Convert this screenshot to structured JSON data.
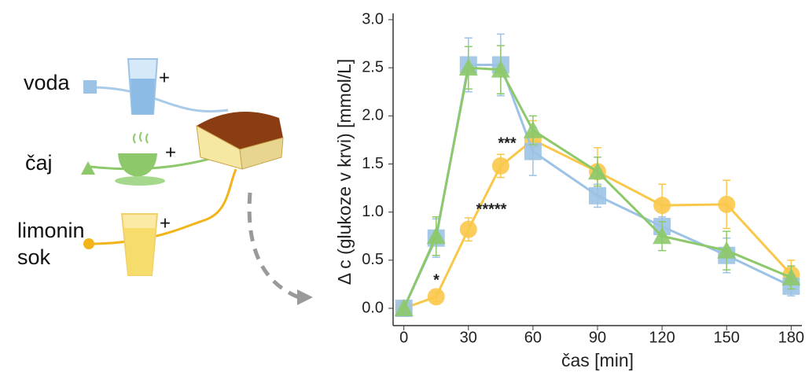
{
  "chart_data": {
    "type": "line",
    "y_label": "Δ c (glukoze v krvi) [mmol/L]",
    "x_label": "čas [min]",
    "x": [
      0,
      15,
      30,
      45,
      60,
      90,
      120,
      150,
      180
    ],
    "xlim": [
      -5,
      185
    ],
    "xticks": [
      0,
      30,
      60,
      90,
      120,
      150,
      180
    ],
    "ylim": [
      0,
      3
    ],
    "yticks": [
      {
        "value": 0,
        "label": "0.0"
      },
      0.5,
      {
        "value": 1,
        "label": "1.0"
      },
      1.5,
      {
        "value": 2,
        "label": "2.0"
      },
      2.5,
      {
        "value": 3,
        "label": "3.0"
      }
    ],
    "series": [
      {
        "name": "voda",
        "color": "#9cc3e6",
        "marker": "square",
        "values": [
          0,
          0.73,
          2.53,
          2.53,
          1.63,
          1.17,
          0.85,
          0.55,
          0.23
        ],
        "errors": [
          0,
          0.2,
          0.28,
          0.32,
          0.25,
          0.12,
          0.1,
          0.18,
          0.1
        ]
      },
      {
        "name": "čaj",
        "color": "#8dc96b",
        "marker": "triangle",
        "values": [
          0,
          0.75,
          2.5,
          2.48,
          1.85,
          1.42,
          0.75,
          0.6,
          0.32
        ],
        "errors": [
          0,
          0.2,
          0.22,
          0.25,
          0.15,
          0.15,
          0.15,
          0.2,
          0.12
        ]
      },
      {
        "name": "limonin sok",
        "color": "#f9c84a",
        "marker": "circle",
        "values": [
          0,
          0.12,
          0.82,
          1.48,
          1.75,
          1.42,
          1.07,
          1.08,
          0.35
        ],
        "errors": [
          0,
          0.05,
          0.12,
          0.12,
          0.2,
          0.25,
          0.22,
          0.25,
          0.15
        ]
      }
    ],
    "annotations": [
      "*",
      "*****",
      "***"
    ]
  }
}
